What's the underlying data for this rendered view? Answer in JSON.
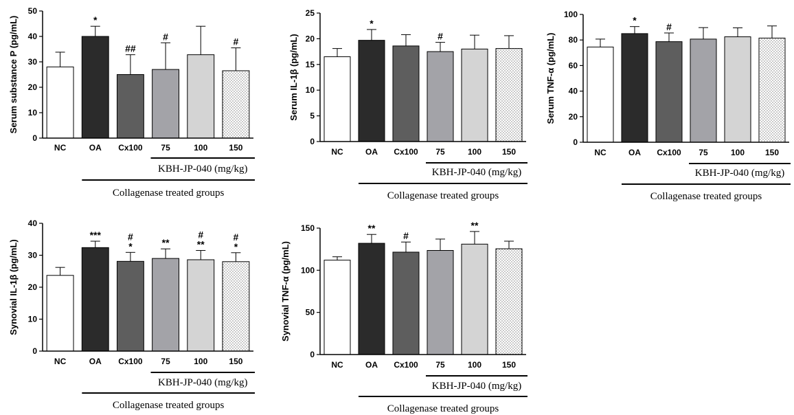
{
  "bar_styles": [
    {
      "fill": "#ffffff",
      "pattern": false
    },
    {
      "fill": "#2b2b2b",
      "pattern": false
    },
    {
      "fill": "#5e5e5e",
      "pattern": false
    },
    {
      "fill": "#a3a3a8",
      "pattern": false
    },
    {
      "fill": "#d4d4d4",
      "pattern": false
    },
    {
      "fill": "#ffffff",
      "pattern": true
    }
  ],
  "chart_data": [
    {
      "type": "bar",
      "ylabel": "Serum substance P (pg/mL)",
      "categories": [
        "NC",
        "OA",
        "Cx100",
        "75",
        "100",
        "150"
      ],
      "values": [
        28,
        40,
        25,
        27,
        32.8,
        26.5
      ],
      "errors": [
        5.8,
        4,
        7.8,
        10.5,
        11.2,
        9
      ],
      "significance": [
        [
          ""
        ],
        [
          "*"
        ],
        [
          "##"
        ],
        [
          "#"
        ],
        [
          ""
        ],
        [
          "#"
        ]
      ],
      "ylim": [
        0,
        50
      ],
      "yticks": [
        0,
        10,
        20,
        30,
        40,
        50
      ],
      "dose_label": "KBH-JP-040 (mg/kg)",
      "group_label": "Collagenase treated groups"
    },
    {
      "type": "bar",
      "ylabel": "Serum IL-1β (pg/mL)",
      "categories": [
        "NC",
        "OA",
        "Cx100",
        "75",
        "100",
        "150"
      ],
      "values": [
        16.5,
        19.7,
        18.6,
        17.5,
        18,
        18.1
      ],
      "errors": [
        1.6,
        2.1,
        2.2,
        1.8,
        2.7,
        2.5
      ],
      "significance": [
        [
          ""
        ],
        [
          "*"
        ],
        [
          ""
        ],
        [
          "#"
        ],
        [
          ""
        ],
        [
          ""
        ]
      ],
      "ylim": [
        0,
        25
      ],
      "yticks": [
        0,
        5,
        10,
        15,
        20,
        25
      ],
      "dose_label": "KBH-JP-040 (mg/kg)",
      "group_label": "Collagenase treated groups"
    },
    {
      "type": "bar",
      "ylabel": "Serum TNF-α (pg/mL)",
      "categories": [
        "NC",
        "OA",
        "Cx100",
        "75",
        "100",
        "150"
      ],
      "values": [
        74.5,
        85,
        78.7,
        80.7,
        82.5,
        81.5
      ],
      "errors": [
        6.2,
        5.5,
        6.8,
        9,
        7,
        9.5
      ],
      "significance": [
        [
          ""
        ],
        [
          "*"
        ],
        [
          "#"
        ],
        [
          ""
        ],
        [
          ""
        ],
        [
          ""
        ]
      ],
      "ylim": [
        0,
        100
      ],
      "yticks": [
        0,
        20,
        40,
        60,
        80,
        100
      ],
      "dose_label": "KBH-JP-040 (mg/kg)",
      "group_label": "Collagenase treated groups"
    },
    {
      "type": "bar",
      "ylabel": "Synovial IL-1β (pg/mL)",
      "categories": [
        "NC",
        "OA",
        "Cx100",
        "75",
        "100",
        "150"
      ],
      "values": [
        23.7,
        32.4,
        28.1,
        29,
        28.6,
        28
      ],
      "errors": [
        2.5,
        2,
        2.8,
        3,
        2.9,
        2.8
      ],
      "significance": [
        [
          ""
        ],
        [
          "***"
        ],
        [
          "#",
          "*"
        ],
        [
          "**"
        ],
        [
          "#",
          "**"
        ],
        [
          "#",
          "*"
        ]
      ],
      "ylim": [
        0,
        40
      ],
      "yticks": [
        0,
        10,
        20,
        30,
        40
      ],
      "dose_label": "KBH-JP-040 (mg/kg)",
      "group_label": "Collagenase treated groups"
    },
    {
      "type": "bar",
      "ylabel": "Synovial TNF-α (pg/mL)",
      "categories": [
        "NC",
        "OA",
        "Cx100",
        "75",
        "100",
        "150"
      ],
      "values": [
        112,
        132,
        121.5,
        123.5,
        131,
        125.5
      ],
      "errors": [
        4,
        10.5,
        12,
        13.5,
        15,
        9
      ],
      "significance": [
        [
          ""
        ],
        [
          "**"
        ],
        [
          "#"
        ],
        [
          ""
        ],
        [
          "**"
        ],
        [
          ""
        ]
      ],
      "ylim": [
        0,
        150
      ],
      "yticks": [
        0,
        50,
        100,
        150
      ],
      "dose_label": "KBH-JP-040 (mg/kg)",
      "group_label": "Collagenase treated groups"
    }
  ]
}
